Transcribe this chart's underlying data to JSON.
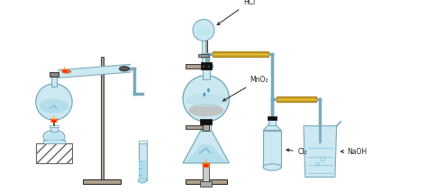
{
  "bg_color": "#ffffff",
  "glass_color": "#cce8f0",
  "glass_edge": "#7aaabb",
  "stand_color": "#b0a090",
  "base_color": "#9a8878",
  "black": "#222222",
  "gray": "#999999",
  "dark_gray": "#666666",
  "yellow_tube": "#c8a020",
  "label_HCl": "HCl",
  "label_MnO2": "MnO₂",
  "label_Cl2": "Cl₂",
  "label_NaOH": "NaOH"
}
